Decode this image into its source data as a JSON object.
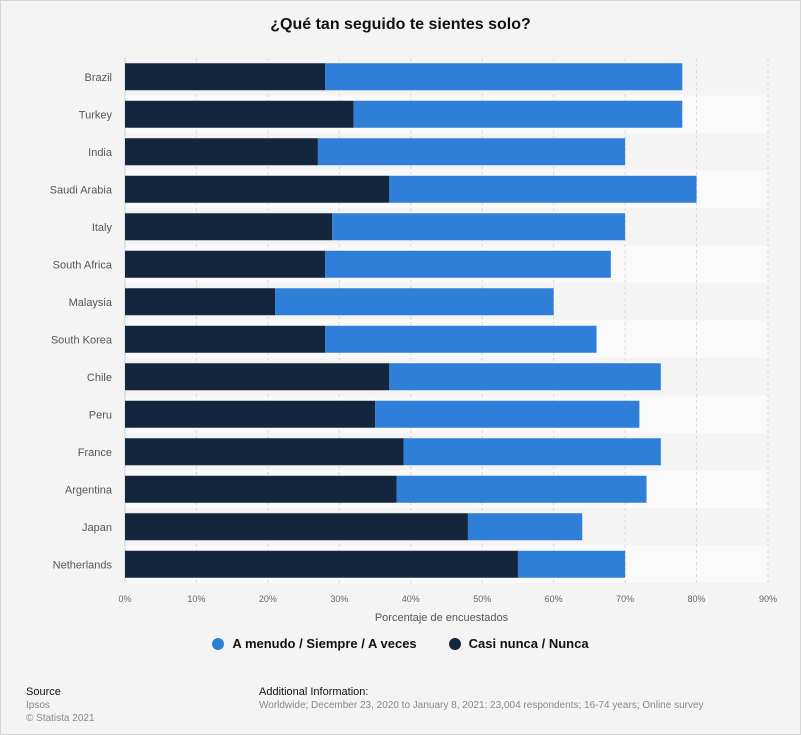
{
  "chart_data": {
    "type": "bar",
    "orientation": "horizontal",
    "stacked": true,
    "title": "¿Qué tan seguido te sientes solo?",
    "xlabel": "Porcentaje de encuestados",
    "xlim": [
      0,
      90
    ],
    "xticks": [
      "0%",
      "10%",
      "20%",
      "30%",
      "40%",
      "50%",
      "60%",
      "70%",
      "80%",
      "90%"
    ],
    "categories": [
      "Brazil",
      "Turkey",
      "India",
      "Saudi Arabia",
      "Italy",
      "South Africa",
      "Malaysia",
      "South Korea",
      "Chile",
      "Peru",
      "France",
      "Argentina",
      "Japan",
      "Netherlands"
    ],
    "series": [
      {
        "name": "Casi nunca / Nunca",
        "color": "#13263d",
        "values": [
          28,
          32,
          27,
          37,
          29,
          28,
          21,
          28,
          37,
          35,
          39,
          38,
          48,
          55
        ]
      },
      {
        "name": "A menudo / Siempre / A veces",
        "color": "#2f7ed8",
        "values": [
          50,
          46,
          43,
          43,
          41,
          40,
          39,
          38,
          38,
          37,
          36,
          35,
          16,
          15
        ]
      }
    ],
    "grid": true,
    "legend_position": "bottom"
  },
  "legend": {
    "items": [
      {
        "label": "A menudo / Siempre / A veces",
        "color": "#2f7ed8"
      },
      {
        "label": "Casi nunca / Nunca",
        "color": "#13263d"
      }
    ]
  },
  "footer": {
    "source_heading": "Source",
    "source_name": "Ipsos",
    "copyright": "© Statista 2021",
    "info_heading": "Additional Information:",
    "info_text": "Worldwide; December 23, 2020 to January 8, 2021; 23,004 respondents; 16-74 years; Online survey"
  }
}
